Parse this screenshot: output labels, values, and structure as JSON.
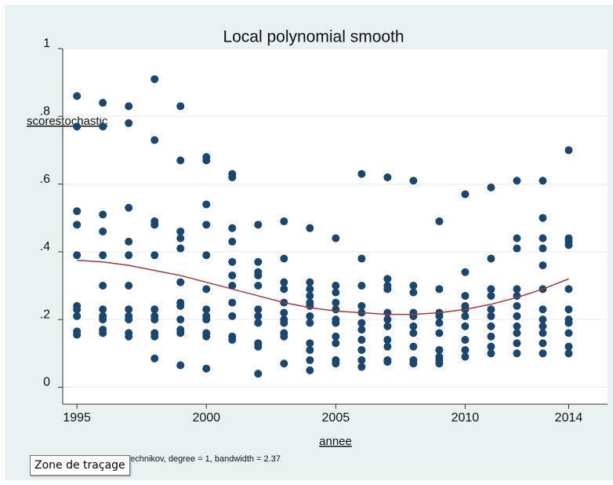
{
  "chart_data": {
    "type": "scatter",
    "title": "Local polynomial smooth",
    "x_label": "annee",
    "y_label": "scorestochastic",
    "note": "nechnikov, degree = 1, bandwidth = 2.37",
    "xlim": [
      1994.45,
      2015.5
    ],
    "xticks": [
      1995,
      2000,
      2005,
      2010,
      2014
    ],
    "ylim": [
      -0.05,
      1.0
    ],
    "yticks": [
      0,
      {
        "value": 0.2,
        "label": ".2"
      },
      {
        "value": 0.4,
        "label": ".4"
      },
      {
        "value": 0.6,
        "label": ".6"
      },
      {
        "value": 0.8,
        "label": ".8"
      },
      1
    ],
    "grid": true,
    "series": [
      {
        "type": "scatter",
        "color": "#1a476f",
        "groups": [
          {
            "x": 1995,
            "values": [
              0.86,
              0.77,
              0.52,
              0.48,
              0.39,
              0.24,
              0.23,
              0.21,
              0.165,
              0.155
            ]
          },
          {
            "x": 1996,
            "values": [
              0.84,
              0.77,
              0.51,
              0.46,
              0.39,
              0.3,
              0.23,
              0.21,
              0.2,
              0.17,
              0.16
            ]
          },
          {
            "x": 1997,
            "values": [
              0.83,
              0.78,
              0.53,
              0.43,
              0.39,
              0.3,
              0.23,
              0.21,
              0.2,
              0.16,
              0.15
            ]
          },
          {
            "x": 1998,
            "values": [
              0.91,
              0.73,
              0.49,
              0.48,
              0.39,
              0.23,
              0.21,
              0.2,
              0.16,
              0.15,
              0.085
            ]
          },
          {
            "x": 1999,
            "values": [
              0.83,
              0.67,
              0.46,
              0.44,
              0.41,
              0.31,
              0.25,
              0.24,
              0.2,
              0.17,
              0.16,
              0.065
            ]
          },
          {
            "x": 2000,
            "values": [
              0.68,
              0.67,
              0.54,
              0.48,
              0.39,
              0.29,
              0.23,
              0.21,
              0.2,
              0.16,
              0.15,
              0.055
            ]
          },
          {
            "x": 2001,
            "values": [
              0.63,
              0.62,
              0.47,
              0.43,
              0.37,
              0.33,
              0.3,
              0.25,
              0.21,
              0.15,
              0.14
            ]
          },
          {
            "x": 2002,
            "values": [
              0.48,
              0.37,
              0.34,
              0.33,
              0.3,
              0.23,
              0.21,
              0.19,
              0.13,
              0.12,
              0.04
            ]
          },
          {
            "x": 2003,
            "values": [
              0.49,
              0.38,
              0.31,
              0.29,
              0.25,
              0.22,
              0.2,
              0.19,
              0.16,
              0.15,
              0.07
            ]
          },
          {
            "x": 2004,
            "values": [
              0.47,
              0.31,
              0.29,
              0.27,
              0.25,
              0.24,
              0.21,
              0.19,
              0.13,
              0.11,
              0.08,
              0.05
            ]
          },
          {
            "x": 2005,
            "values": [
              0.44,
              0.3,
              0.28,
              0.25,
              0.23,
              0.2,
              0.19,
              0.15,
              0.13,
              0.08,
              0.07
            ]
          },
          {
            "x": 2006,
            "values": [
              0.63,
              0.38,
              0.3,
              0.24,
              0.22,
              0.19,
              0.17,
              0.14,
              0.11,
              0.08,
              0.06
            ]
          },
          {
            "x": 2007,
            "values": [
              0.62,
              0.32,
              0.3,
              0.29,
              0.22,
              0.2,
              0.18,
              0.14,
              0.12,
              0.08,
              0.075
            ]
          },
          {
            "x": 2008,
            "values": [
              0.61,
              0.3,
              0.28,
              0.22,
              0.21,
              0.18,
              0.16,
              0.12,
              0.08,
              0.07
            ]
          },
          {
            "x": 2009,
            "values": [
              0.49,
              0.29,
              0.22,
              0.21,
              0.19,
              0.16,
              0.11,
              0.09,
              0.08,
              0.07
            ]
          },
          {
            "x": 2010,
            "values": [
              0.57,
              0.34,
              0.27,
              0.24,
              0.23,
              0.21,
              0.18,
              0.14,
              0.11,
              0.09
            ]
          },
          {
            "x": 2011,
            "values": [
              0.59,
              0.38,
              0.29,
              0.27,
              0.23,
              0.21,
              0.18,
              0.15,
              0.12,
              0.1
            ]
          },
          {
            "x": 2012,
            "values": [
              0.61,
              0.44,
              0.41,
              0.29,
              0.27,
              0.24,
              0.21,
              0.18,
              0.16,
              0.13,
              0.1
            ]
          },
          {
            "x": 2013,
            "values": [
              0.61,
              0.5,
              0.44,
              0.41,
              0.36,
              0.29,
              0.23,
              0.2,
              0.18,
              0.16,
              0.13,
              0.1
            ]
          },
          {
            "x": 2014,
            "values": [
              0.7,
              0.44,
              0.43,
              0.42,
              0.29,
              0.23,
              0.2,
              0.19,
              0.16,
              0.12,
              0.1
            ]
          }
        ]
      },
      {
        "type": "line",
        "color": "#a0393a",
        "x": [
          1995,
          1996,
          1997,
          1998,
          1999,
          2000,
          2001,
          2002,
          2003,
          2004,
          2005,
          2006,
          2007,
          2008,
          2009,
          2010,
          2011,
          2012,
          2013,
          2014
        ],
        "values": [
          0.375,
          0.37,
          0.36,
          0.345,
          0.33,
          0.31,
          0.29,
          0.27,
          0.25,
          0.235,
          0.225,
          0.22,
          0.215,
          0.215,
          0.22,
          0.23,
          0.245,
          0.265,
          0.29,
          0.32
        ]
      }
    ]
  },
  "tooltip": "Zone de traçage"
}
